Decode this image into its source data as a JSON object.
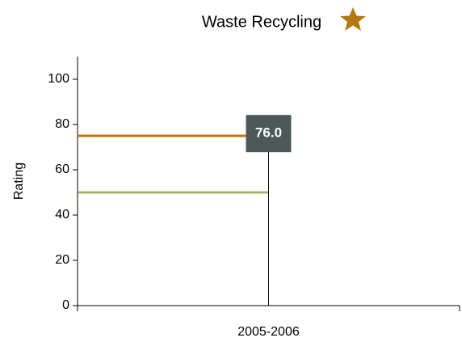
{
  "chart_data": {
    "type": "marker",
    "title": "Waste Recycling",
    "ylabel": "Rating",
    "categories": [
      "2005-2006"
    ],
    "values": [
      76
    ],
    "value_labels": [
      "76.0"
    ],
    "color": "#4d5858",
    "ylim": [
      0,
      110
    ],
    "yticks": [
      0,
      20,
      40,
      60,
      80,
      100
    ],
    "reference_lines": [
      {
        "value": 75,
        "color": "#c0730c"
      },
      {
        "value": 50,
        "color": "#a4b96d"
      }
    ]
  }
}
